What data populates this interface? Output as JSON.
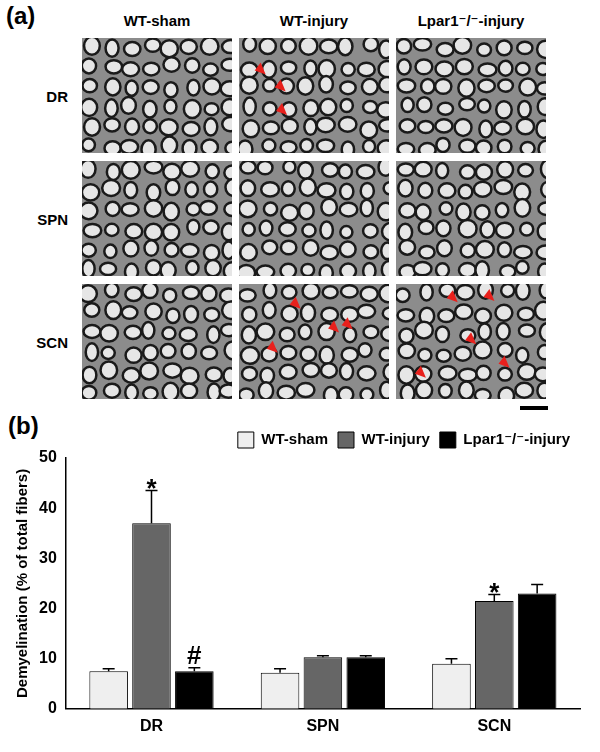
{
  "panel_a": {
    "label": "(a)",
    "columns": [
      "WT-sham",
      "WT-injury",
      "Lpar1⁻/⁻-injury"
    ],
    "rows": [
      "DR",
      "SPN",
      "SCN"
    ]
  },
  "chart_data": {
    "type": "bar",
    "panel_label": "(b)",
    "y_label": "Demyelination (% of total fibers)",
    "categories": [
      "DR",
      "SPN",
      "SCN"
    ],
    "series": [
      {
        "name": "WT-sham",
        "color": "#efefef",
        "values": [
          7.5,
          7.2,
          9.0
        ],
        "errors": [
          0.5,
          0.8,
          1.0
        ]
      },
      {
        "name": "WT-injury",
        "color": "#666666",
        "values": [
          37.0,
          10.3,
          21.5
        ],
        "errors": [
          6.5,
          0.3,
          1.3
        ]
      },
      {
        "name": "Lpar1⁻/⁻-injury",
        "color": "#000000",
        "values": [
          7.5,
          10.3,
          23.0
        ],
        "errors": [
          0.7,
          0.3,
          1.8
        ]
      }
    ],
    "annotations": [
      {
        "category": "DR",
        "series": "WT-injury",
        "text": "*"
      },
      {
        "category": "DR",
        "series": "Lpar1⁻/⁻-injury",
        "text": "#"
      },
      {
        "category": "SCN",
        "series": "WT-injury",
        "text": "*"
      }
    ],
    "ylim": [
      0,
      50
    ],
    "yticks": [
      0,
      10,
      20,
      30,
      40,
      50
    ],
    "grid": false,
    "legend": "top-right"
  }
}
